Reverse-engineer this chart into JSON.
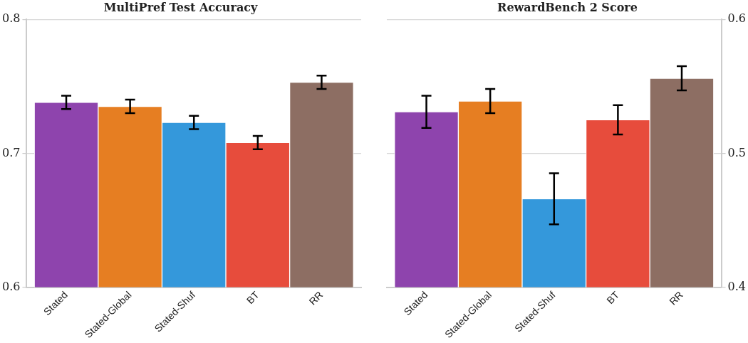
{
  "chart_data": [
    {
      "type": "bar",
      "title": "MultiPref Test Accuracy",
      "categories": [
        "Stated",
        "Stated-Global",
        "Stated-Shuf",
        "BT",
        "RR"
      ],
      "values": [
        0.738,
        0.735,
        0.723,
        0.708,
        0.753
      ],
      "errors": [
        0.005,
        0.005,
        0.005,
        0.005,
        0.005
      ],
      "colors": [
        "#8e44ad",
        "#e67e22",
        "#3498db",
        "#e74c3c",
        "#8d6e63"
      ],
      "ylim": [
        0.6,
        0.8
      ],
      "yticks": [
        0.6,
        0.7,
        0.8
      ],
      "grid": "y"
    },
    {
      "type": "bar",
      "title": "RewardBench 2 Score",
      "categories": [
        "Stated",
        "Stated-Global",
        "Stated-Shuf",
        "BT",
        "RR"
      ],
      "series": [
        {
          "axis": "y2",
          "values": [
            0.531,
            0.539,
            0.466,
            0.525,
            0.556
          ],
          "errors": [
            0.012,
            0.009,
            0.019,
            0.011,
            0.009
          ],
          "colors": [
            "#8e44ad",
            "#e67e22",
            "#3498db",
            "#e74c3c",
            "#8d6e63"
          ]
        }
      ],
      "y2lim": [
        0.4,
        0.6
      ],
      "y2ticks": [
        0.4,
        0.5,
        0.6
      ],
      "grid": "y"
    }
  ]
}
